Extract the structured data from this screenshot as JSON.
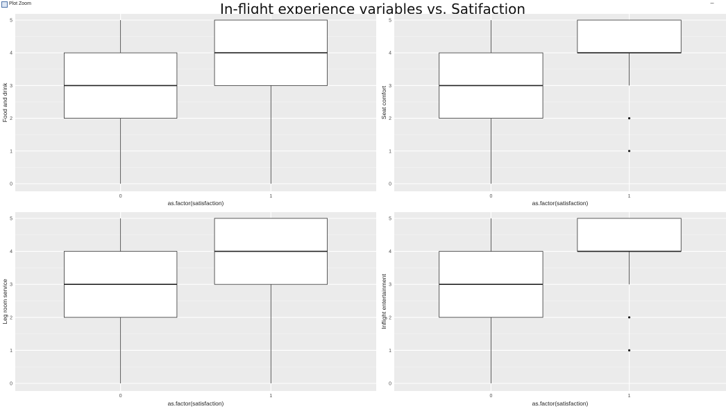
{
  "window": {
    "title": "Plot Zoom",
    "minimize_label": "–"
  },
  "figure_title": "In-flight experience variables vs. Satifaction",
  "chart_data": [
    {
      "type": "boxplot",
      "ylabel": "Food and drink",
      "xlabel": "as.factor(satisfaction)",
      "categories": [
        "0",
        "1"
      ],
      "ylim": [
        0,
        5
      ],
      "yticks": [
        0,
        1,
        2,
        3,
        4,
        5
      ],
      "boxes": [
        {
          "category": "0",
          "min": 0,
          "q1": 2,
          "median": 3,
          "q3": 4,
          "max": 5,
          "outliers": []
        },
        {
          "category": "1",
          "min": 0,
          "q1": 3,
          "median": 4,
          "q3": 5,
          "max": 5,
          "outliers": []
        }
      ],
      "grid": true
    },
    {
      "type": "boxplot",
      "ylabel": "Seat comfort",
      "xlabel": "as.factor(satisfaction)",
      "categories": [
        "0",
        "1"
      ],
      "ylim": [
        0,
        5
      ],
      "yticks": [
        0,
        1,
        2,
        3,
        4,
        5
      ],
      "boxes": [
        {
          "category": "0",
          "min": 0,
          "q1": 2,
          "median": 3,
          "q3": 4,
          "max": 5,
          "outliers": []
        },
        {
          "category": "1",
          "min": 3,
          "q1": 4,
          "median": 4,
          "q3": 5,
          "max": 5,
          "outliers": [
            2,
            1
          ]
        }
      ],
      "grid": true
    },
    {
      "type": "boxplot",
      "ylabel": "Leg room service",
      "xlabel": "as.factor(satisfaction)",
      "categories": [
        "0",
        "1"
      ],
      "ylim": [
        0,
        5
      ],
      "yticks": [
        0,
        1,
        2,
        3,
        4,
        5
      ],
      "boxes": [
        {
          "category": "0",
          "min": 0,
          "q1": 2,
          "median": 3,
          "q3": 4,
          "max": 5,
          "outliers": []
        },
        {
          "category": "1",
          "min": 0,
          "q1": 3,
          "median": 4,
          "q3": 5,
          "max": 5,
          "outliers": []
        }
      ],
      "grid": true
    },
    {
      "type": "boxplot",
      "ylabel": "Inflight entertainment",
      "xlabel": "as.factor(satisfaction)",
      "categories": [
        "0",
        "1"
      ],
      "ylim": [
        0,
        5
      ],
      "yticks": [
        0,
        1,
        2,
        3,
        4,
        5
      ],
      "boxes": [
        {
          "category": "0",
          "min": 0,
          "q1": 2,
          "median": 3,
          "q3": 4,
          "max": 5,
          "outliers": []
        },
        {
          "category": "1",
          "min": 3,
          "q1": 4,
          "median": 4,
          "q3": 5,
          "max": 5,
          "outliers": [
            2,
            1
          ]
        }
      ],
      "grid": true
    }
  ]
}
